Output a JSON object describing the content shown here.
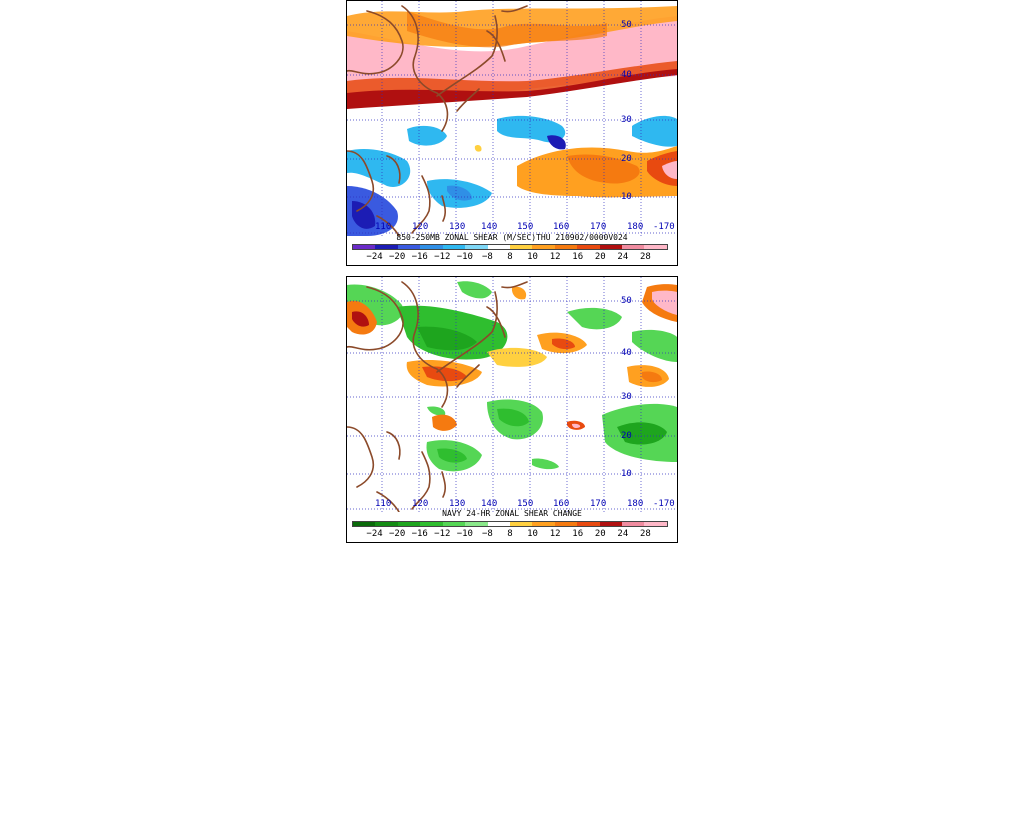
{
  "top_panel": {
    "title": "850-250MB ZONAL SHEAR (M/SEC)THU 210902/0000V024",
    "lon_labels": [
      "110",
      "120",
      "130",
      "140",
      "150",
      "160",
      "170",
      "180",
      "-170"
    ],
    "lat_labels": [
      "50",
      "40",
      "30",
      "20",
      "10"
    ],
    "colorbar_labels": [
      "-24",
      "-20",
      "-16",
      "-12",
      "-10",
      "-8",
      "8",
      "10",
      "12",
      "16",
      "20",
      "24",
      "28"
    ],
    "colorbar_colors": [
      "#6a2bc8",
      "#1c1cb4",
      "#3a5ae0",
      "#2f8fe6",
      "#2fb8f0",
      "#7fd8f7",
      "#ffffff",
      "#ffd040",
      "#ffa020",
      "#f57a10",
      "#e84a10",
      "#b01010",
      "#f08ca0",
      "#ffb8c8"
    ]
  },
  "bottom_panel": {
    "title": "NAVY 24-HR ZONAL SHEAR CHANGE",
    "lon_labels": [
      "110",
      "120",
      "130",
      "140",
      "150",
      "160",
      "170",
      "180",
      "-170"
    ],
    "lat_labels": [
      "50",
      "40",
      "30",
      "20",
      "10"
    ],
    "colorbar_labels": [
      "-24",
      "-20",
      "-16",
      "-12",
      "-10",
      "-8",
      "8",
      "10",
      "12",
      "16",
      "20",
      "24",
      "28"
    ],
    "colorbar_colors": [
      "#0a6a0a",
      "#148c14",
      "#1ea51e",
      "#2fbe2f",
      "#55d655",
      "#8ae88a",
      "#ffffff",
      "#ffd040",
      "#ffa020",
      "#f57a10",
      "#e84a10",
      "#b01010",
      "#f08ca0",
      "#ffb8c8"
    ]
  }
}
